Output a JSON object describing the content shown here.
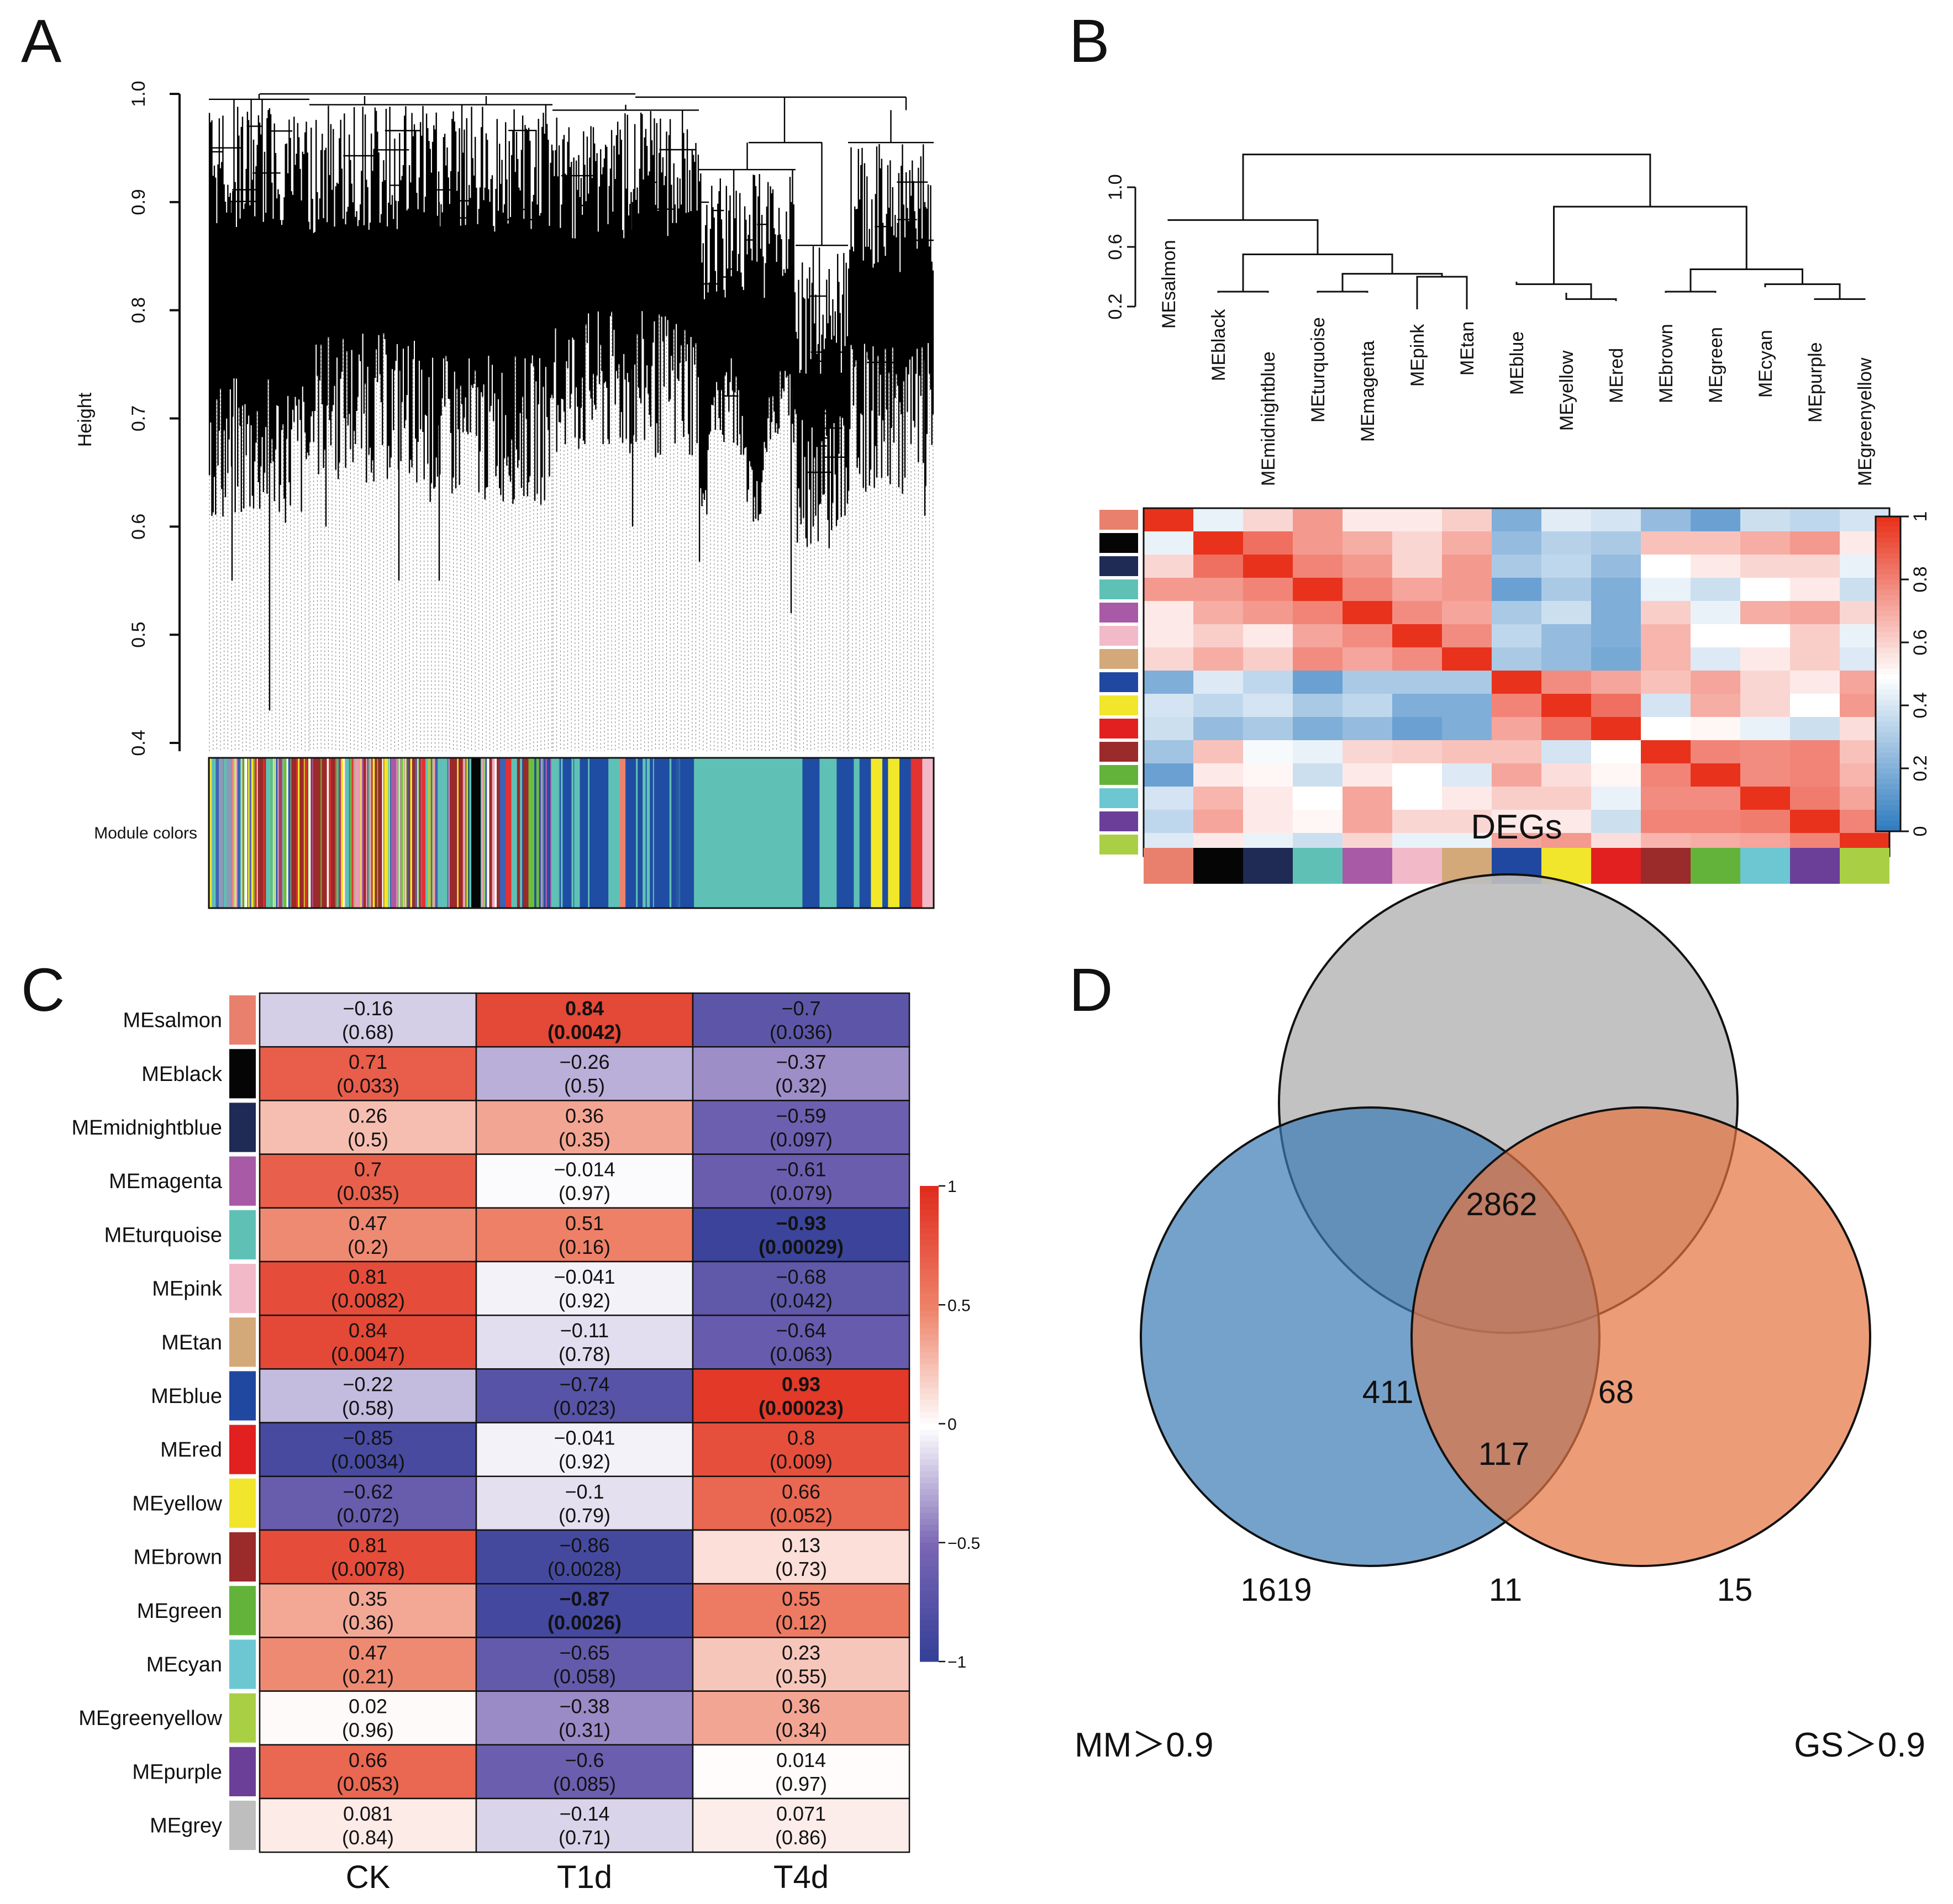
{
  "panels": {
    "a": {
      "label": "A"
    },
    "b": {
      "label": "B"
    },
    "c": {
      "label": "C"
    },
    "d": {
      "label": "D"
    }
  },
  "chart_data": [
    {
      "panel": "A",
      "type": "dendrogram",
      "ylabel": "Height",
      "ylim": [
        0.4,
        1.0
      ],
      "yticks": [
        "0.4",
        "0.5",
        "0.6",
        "0.7",
        "0.8",
        "0.9",
        "1.0"
      ],
      "color_bar_label": "Module colors",
      "module_bar": [
        [
          "#8a9bb5",
          4
        ],
        [
          "#e9a3b7",
          1
        ],
        [
          "#3d62b5",
          2
        ],
        [
          "#f2e82a",
          1
        ],
        [
          "#9b2a2a",
          2
        ],
        [
          "#5fc1b6",
          2
        ],
        [
          "#e33232",
          1
        ],
        [
          "#6cbf39",
          1
        ],
        [
          "#9b2a2a",
          9
        ],
        [
          "#d4a979",
          1
        ],
        [
          "#5fc1b6",
          1
        ],
        [
          "#e89ab8",
          2
        ],
        [
          "#9b2a2a",
          4
        ],
        [
          "#f2e82a",
          1
        ],
        [
          "#ad58a5",
          1
        ],
        [
          "#3d62b5",
          2
        ],
        [
          "#9b2a2a",
          3
        ],
        [
          "#b6c84a",
          2
        ],
        [
          "#5fc1b6",
          2
        ],
        [
          "#9b2a2a",
          3
        ],
        [
          "#050505",
          3
        ],
        [
          "#d4a979",
          1
        ],
        [
          "#9b2a2a",
          2
        ],
        [
          "#3d62b5",
          1
        ],
        [
          "#e33232",
          1
        ],
        [
          "#5fc1b6",
          1
        ],
        [
          "#9b2a2a",
          2
        ],
        [
          "#6cbf39",
          2
        ],
        [
          "#ad58a5",
          2
        ],
        [
          "#5fc1b6",
          2
        ],
        [
          "#1f4da3",
          2
        ],
        [
          "#5fc1b6",
          1
        ],
        [
          "#1f4da3",
          5
        ],
        [
          "#5fc1b6",
          2
        ],
        [
          "#e9836d",
          1
        ],
        [
          "#1f4da3",
          3
        ],
        [
          "#5fc1b6",
          2
        ],
        [
          "#1f4da3",
          7
        ],
        [
          "#5fc1b6",
          19
        ],
        [
          "#1f4da3",
          3
        ],
        [
          "#5fc1b6",
          3
        ],
        [
          "#1f4da3",
          3
        ],
        [
          "#5fc1b6",
          1
        ],
        [
          "#1f4da3",
          2
        ],
        [
          "#f2e82a",
          2
        ],
        [
          "#1f4da3",
          1
        ],
        [
          "#f2e82a",
          2
        ],
        [
          "#1f4da3",
          2
        ],
        [
          "#e33232",
          2
        ],
        [
          "#f2b9c9",
          2
        ]
      ]
    },
    {
      "panel": "B",
      "type": "heatmap",
      "dendrogram_yticks": [
        "0.2",
        "0.6",
        "1.0"
      ],
      "modules": [
        "MEsalmon",
        "MEblack",
        "MEmidnightblue",
        "MEturquoise",
        "MEmagenta",
        "MEpink",
        "MEtan",
        "MEblue",
        "MEyellow",
        "MEred",
        "MEbrown",
        "MEgreen",
        "MEcyan",
        "MEpurple",
        "MEgreenyellow"
      ],
      "module_colors": [
        "#e9806e",
        "#050505",
        "#1f2a55",
        "#5fc1b6",
        "#a85aa6",
        "#f2b9c9",
        "#d4a979",
        "#2148a0",
        "#f2e62c",
        "#e22020",
        "#9b2a2a",
        "#63b33b",
        "#6cc7d3",
        "#6b3f98",
        "#a9cf45"
      ],
      "colorbar_ticks": [
        "0",
        "0.2",
        "0.4",
        "0.6",
        "0.8",
        "1"
      ],
      "values": [
        [
          1.0,
          0.45,
          0.6,
          0.75,
          0.55,
          0.55,
          0.62,
          0.2,
          0.43,
          0.4,
          0.25,
          0.15,
          0.38,
          0.35,
          0.4
        ],
        [
          0.45,
          1.0,
          0.85,
          0.75,
          0.7,
          0.6,
          0.7,
          0.25,
          0.33,
          0.3,
          0.65,
          0.65,
          0.7,
          0.75,
          0.55
        ],
        [
          0.6,
          0.85,
          1.0,
          0.8,
          0.75,
          0.6,
          0.75,
          0.3,
          0.35,
          0.25,
          0.5,
          0.55,
          0.6,
          0.6,
          0.45
        ],
        [
          0.75,
          0.75,
          0.8,
          1.0,
          0.8,
          0.72,
          0.75,
          0.15,
          0.3,
          0.2,
          0.45,
          0.38,
          0.5,
          0.55,
          0.38
        ],
        [
          0.55,
          0.7,
          0.75,
          0.8,
          1.0,
          0.78,
          0.72,
          0.3,
          0.38,
          0.2,
          0.62,
          0.45,
          0.7,
          0.72,
          0.6
        ],
        [
          0.55,
          0.62,
          0.55,
          0.72,
          0.78,
          1.0,
          0.78,
          0.35,
          0.25,
          0.2,
          0.68,
          0.5,
          0.5,
          0.62,
          0.45
        ],
        [
          0.6,
          0.7,
          0.62,
          0.78,
          0.72,
          0.78,
          1.0,
          0.3,
          0.25,
          0.18,
          0.68,
          0.42,
          0.55,
          0.62,
          0.42
        ],
        [
          0.2,
          0.42,
          0.35,
          0.15,
          0.3,
          0.3,
          0.3,
          1.0,
          0.78,
          0.72,
          0.65,
          0.72,
          0.6,
          0.55,
          0.72
        ],
        [
          0.4,
          0.35,
          0.4,
          0.3,
          0.35,
          0.2,
          0.2,
          0.8,
          1.0,
          0.85,
          0.4,
          0.7,
          0.6,
          0.5,
          0.75
        ],
        [
          0.38,
          0.25,
          0.3,
          0.2,
          0.25,
          0.15,
          0.2,
          0.72,
          0.85,
          1.0,
          0.5,
          0.52,
          0.45,
          0.38,
          0.58
        ],
        [
          0.28,
          0.65,
          0.48,
          0.45,
          0.6,
          0.62,
          0.65,
          0.65,
          0.4,
          0.5,
          1.0,
          0.8,
          0.78,
          0.8,
          0.65
        ],
        [
          0.15,
          0.55,
          0.52,
          0.38,
          0.55,
          0.5,
          0.42,
          0.72,
          0.58,
          0.52,
          0.8,
          1.0,
          0.78,
          0.8,
          0.68
        ],
        [
          0.4,
          0.68,
          0.55,
          0.5,
          0.72,
          0.5,
          0.55,
          0.62,
          0.62,
          0.45,
          0.78,
          0.78,
          1.0,
          0.82,
          0.72
        ],
        [
          0.35,
          0.72,
          0.55,
          0.52,
          0.72,
          0.6,
          0.6,
          0.55,
          0.55,
          0.38,
          0.8,
          0.8,
          0.82,
          1.0,
          0.8
        ],
        [
          0.42,
          0.55,
          0.45,
          0.38,
          0.6,
          0.45,
          0.45,
          0.72,
          0.75,
          0.58,
          0.68,
          0.7,
          0.72,
          0.8,
          1.0
        ]
      ]
    },
    {
      "panel": "C",
      "type": "heatmap",
      "columns": [
        "CK",
        "T1d",
        "T4d"
      ],
      "colorbar_ticks": [
        "1",
        "0.5",
        "0",
        "−0.5",
        "−1"
      ],
      "rows": [
        {
          "name": "MEsalmon",
          "color": "#e9806e",
          "r": [
            -0.16,
            0.84,
            -0.7
          ],
          "label": [
            "−0.16",
            "0.84",
            "−0.7"
          ],
          "p": [
            "(0.68)",
            "(0.0042)",
            "(0.036)"
          ],
          "bold": [
            false,
            true,
            false
          ]
        },
        {
          "name": "MEblack",
          "color": "#050505",
          "r": [
            0.71,
            -0.26,
            -0.37
          ],
          "label": [
            "0.71",
            "−0.26",
            "−0.37"
          ],
          "p": [
            "(0.033)",
            "(0.5)",
            "(0.32)"
          ],
          "bold": [
            false,
            false,
            false
          ]
        },
        {
          "name": "MEmidnightblue",
          "color": "#1f2a55",
          "r": [
            0.26,
            0.36,
            -0.59
          ],
          "label": [
            "0.26",
            "0.36",
            "−0.59"
          ],
          "p": [
            "(0.5)",
            "(0.35)",
            "(0.097)"
          ],
          "bold": [
            false,
            false,
            false
          ]
        },
        {
          "name": "MEmagenta",
          "color": "#a85aa6",
          "r": [
            0.7,
            -0.014,
            -0.61
          ],
          "label": [
            "0.7",
            "−0.014",
            "−0.61"
          ],
          "p": [
            "(0.035)",
            "(0.97)",
            "(0.079)"
          ],
          "bold": [
            false,
            false,
            false
          ]
        },
        {
          "name": "MEturquoise",
          "color": "#5fc1b6",
          "r": [
            0.47,
            0.51,
            -0.93
          ],
          "label": [
            "0.47",
            "0.51",
            "−0.93"
          ],
          "p": [
            "(0.2)",
            "(0.16)",
            "(0.00029)"
          ],
          "bold": [
            false,
            false,
            true
          ]
        },
        {
          "name": "MEpink",
          "color": "#f2b9c9",
          "r": [
            0.81,
            -0.041,
            -0.68
          ],
          "label": [
            "0.81",
            "−0.041",
            "−0.68"
          ],
          "p": [
            "(0.0082)",
            "(0.92)",
            "(0.042)"
          ],
          "bold": [
            false,
            false,
            false
          ]
        },
        {
          "name": "MEtan",
          "color": "#d4a979",
          "r": [
            0.84,
            -0.11,
            -0.64
          ],
          "label": [
            "0.84",
            "−0.11",
            "−0.64"
          ],
          "p": [
            "(0.0047)",
            "(0.78)",
            "(0.063)"
          ],
          "bold": [
            false,
            false,
            false
          ]
        },
        {
          "name": "MEblue",
          "color": "#2148a0",
          "r": [
            -0.22,
            -0.74,
            0.93
          ],
          "label": [
            "−0.22",
            "−0.74",
            "0.93"
          ],
          "p": [
            "(0.58)",
            "(0.023)",
            "(0.00023)"
          ],
          "bold": [
            false,
            false,
            true
          ]
        },
        {
          "name": "MEred",
          "color": "#e22020",
          "r": [
            -0.85,
            -0.041,
            0.8
          ],
          "label": [
            "−0.85",
            "−0.041",
            "0.8"
          ],
          "p": [
            "(0.0034)",
            "(0.92)",
            "(0.009)"
          ],
          "bold": [
            false,
            false,
            false
          ]
        },
        {
          "name": "MEyellow",
          "color": "#f2e62c",
          "r": [
            -0.62,
            -0.1,
            0.66
          ],
          "label": [
            "−0.62",
            "−0.1",
            "0.66"
          ],
          "p": [
            "(0.072)",
            "(0.79)",
            "(0.052)"
          ],
          "bold": [
            false,
            false,
            false
          ]
        },
        {
          "name": "MEbrown",
          "color": "#9b2a2a",
          "r": [
            0.81,
            -0.86,
            0.13
          ],
          "label": [
            "0.81",
            "−0.86",
            "0.13"
          ],
          "p": [
            "(0.0078)",
            "(0.0028)",
            "(0.73)"
          ],
          "bold": [
            false,
            false,
            false
          ]
        },
        {
          "name": "MEgreen",
          "color": "#63b33b",
          "r": [
            0.35,
            -0.87,
            0.55
          ],
          "label": [
            "0.35",
            "−0.87",
            "0.55"
          ],
          "p": [
            "(0.36)",
            "(0.0026)",
            "(0.12)"
          ],
          "bold": [
            false,
            true,
            false
          ]
        },
        {
          "name": "MEcyan",
          "color": "#6cc7d3",
          "r": [
            0.47,
            -0.65,
            0.23
          ],
          "label": [
            "0.47",
            "−0.65",
            "0.23"
          ],
          "p": [
            "(0.21)",
            "(0.058)",
            "(0.55)"
          ],
          "bold": [
            false,
            false,
            false
          ]
        },
        {
          "name": "MEgreenyellow",
          "color": "#a9cf45",
          "r": [
            0.02,
            -0.38,
            0.36
          ],
          "label": [
            "0.02",
            "−0.38",
            "0.36"
          ],
          "p": [
            "(0.96)",
            "(0.31)",
            "(0.34)"
          ],
          "bold": [
            false,
            false,
            false
          ]
        },
        {
          "name": "MEpurple",
          "color": "#6b3f98",
          "r": [
            0.66,
            -0.6,
            0.014
          ],
          "label": [
            "0.66",
            "−0.6",
            "0.014"
          ],
          "p": [
            "(0.053)",
            "(0.085)",
            "(0.97)"
          ],
          "bold": [
            false,
            false,
            false
          ]
        },
        {
          "name": "MEgrey",
          "color": "#bebebe",
          "r": [
            0.081,
            -0.14,
            0.071
          ],
          "label": [
            "0.081",
            "−0.14",
            "0.071"
          ],
          "p": [
            "(0.84)",
            "(0.71)",
            "(0.86)"
          ],
          "bold": [
            false,
            false,
            false
          ]
        }
      ]
    },
    {
      "panel": "D",
      "type": "venn",
      "sets": [
        {
          "name": "DEGs",
          "color": "#bdbdbd"
        },
        {
          "name": "MM＞0.9",
          "color": "#6fa3c9"
        },
        {
          "name": "GS＞0.9",
          "color": "#ea8a63"
        }
      ],
      "regions": {
        "degs_only": "2862",
        "mm_only": "1619",
        "gs_only": "15",
        "degs_mm": "411",
        "degs_gs": "68",
        "mm_gs": "11",
        "all": "117"
      }
    }
  ]
}
